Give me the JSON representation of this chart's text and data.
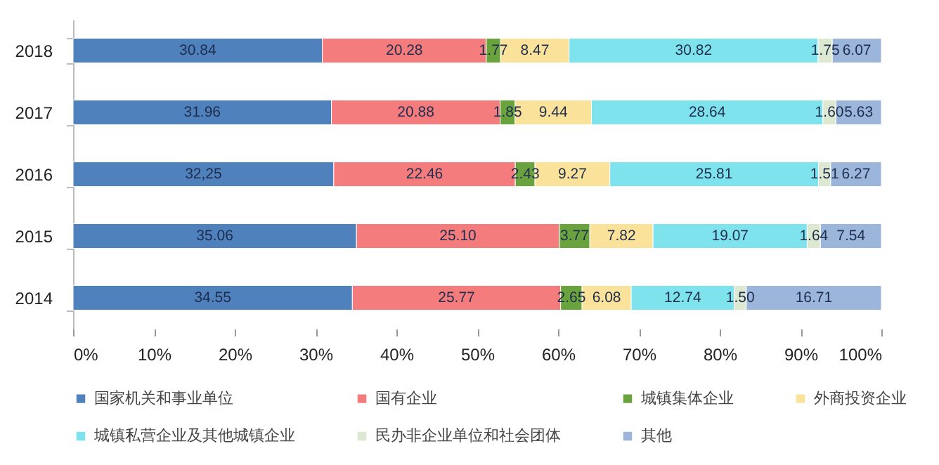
{
  "chart_data": {
    "type": "bar",
    "orientation": "horizontal",
    "stacked": true,
    "categories": [
      "2018",
      "2017",
      "2016",
      "2015",
      "2014"
    ],
    "series": [
      {
        "name": "国家机关和事业单位",
        "color": "#4f81bd",
        "values": [
          30.84,
          31.96,
          32.25,
          35.06,
          34.55
        ],
        "value_labels": [
          "30.84",
          "31.96",
          "32,25",
          "35.06",
          "34.55"
        ]
      },
      {
        "name": "国有企业",
        "color": "#f47c7c",
        "values": [
          20.28,
          20.88,
          22.46,
          25.1,
          25.77
        ],
        "value_labels": [
          "20.28",
          "20.88",
          "22.46",
          "25.10",
          "25.77"
        ]
      },
      {
        "name": "城镇集体企业",
        "color": "#6aa33e",
        "values": [
          1.77,
          1.85,
          2.43,
          3.77,
          2.65
        ],
        "value_labels": [
          "1.77",
          "1.85",
          "2.43",
          "3.77",
          "2.65"
        ]
      },
      {
        "name": "外商投资企业",
        "color": "#fbe29a",
        "values": [
          8.47,
          9.44,
          9.27,
          7.82,
          6.08
        ],
        "value_labels": [
          "8.47",
          "9.44",
          "9.27",
          "7.82",
          "6.08"
        ]
      },
      {
        "name": "城镇私营企业及其他城镇企业",
        "color": "#7fe3ee",
        "values": [
          30.82,
          28.64,
          25.81,
          19.07,
          12.74
        ],
        "value_labels": [
          "30.82",
          "28.64",
          "25.81",
          "19.07",
          "12.74"
        ]
      },
      {
        "name": "民办非企业单位和社会团体",
        "color": "#dde8d0",
        "values": [
          1.75,
          1.6,
          1.51,
          1.64,
          1.5
        ],
        "value_labels": [
          "1.75",
          "1.60",
          "1.51",
          "1.64",
          "1.50"
        ]
      },
      {
        "name": "其他",
        "color": "#9bb5db",
        "values": [
          6.07,
          5.63,
          6.27,
          7.54,
          16.71
        ],
        "value_labels": [
          "6.07",
          "5.63",
          "6.27",
          "7.54",
          "16.71"
        ]
      }
    ],
    "xlim": [
      0,
      100
    ],
    "xticks": [
      {
        "value": 0,
        "label": "0%"
      },
      {
        "value": 10,
        "label": "10%"
      },
      {
        "value": 20,
        "label": "20%"
      },
      {
        "value": 30,
        "label": "30%"
      },
      {
        "value": 40,
        "label": "40%"
      },
      {
        "value": 50,
        "label": "50%"
      },
      {
        "value": 60,
        "label": "60%"
      },
      {
        "value": 70,
        "label": "70%"
      },
      {
        "value": 80,
        "label": "80%"
      },
      {
        "value": 90,
        "label": "90%"
      },
      {
        "value": 100,
        "label": "100%"
      }
    ],
    "grid": false,
    "legend": "bottom"
  }
}
